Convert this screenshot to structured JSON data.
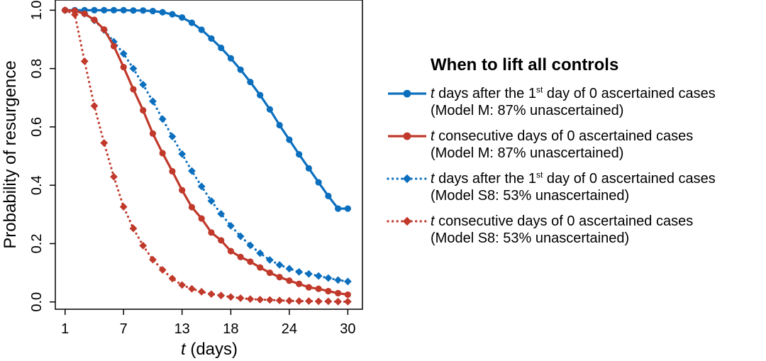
{
  "chart_data": {
    "type": "line",
    "title": "",
    "xlabel": "t (days)",
    "ylabel": "Probability of resurgence",
    "x_ticks": [
      1,
      7,
      13,
      18,
      24,
      30
    ],
    "y_ticks": [
      0.0,
      0.2,
      0.4,
      0.6,
      0.8,
      1.0
    ],
    "y_tick_labels": [
      "0.0",
      "0.2",
      "0.4",
      "0.6",
      "0.8",
      "1.0"
    ],
    "xlim": [
      0,
      31.5
    ],
    "ylim": [
      -0.025,
      1.035
    ],
    "grid": false,
    "legend": {
      "placement": "right",
      "title": "When to lift all controls"
    },
    "x": [
      1,
      2,
      3,
      4,
      5,
      6,
      7,
      8,
      9,
      10,
      11,
      12,
      13,
      14,
      15,
      16,
      17,
      18,
      19,
      20,
      21,
      22,
      23,
      24,
      25,
      26,
      27,
      28,
      29,
      30
    ],
    "series": [
      {
        "key": "blue_solid",
        "color": "#0c6fbe",
        "line": "solid",
        "marker": "circle",
        "label": {
          "pre": "",
          "t": "t",
          "mid": " days after the 1",
          "sup": "st",
          "post": " day of 0 ascertained cases",
          "line2": "(Model M: 87% unascertained)"
        },
        "values": [
          1.0,
          1.0,
          1.0,
          1.0,
          1.0,
          1.0,
          1.0,
          0.999,
          0.999,
          0.997,
          0.993,
          0.986,
          0.975,
          0.957,
          0.933,
          0.903,
          0.871,
          0.835,
          0.796,
          0.754,
          0.709,
          0.66,
          0.606,
          0.556,
          0.506,
          0.458,
          0.41,
          0.363,
          0.32,
          0.32
        ]
      },
      {
        "key": "red_solid",
        "color": "#c0392b",
        "line": "solid",
        "marker": "circle",
        "label": {
          "pre": "",
          "t": "t",
          "mid": " consecutive days of 0 ascertained cases",
          "sup": "",
          "post": "",
          "line2": "(Model M: 87% unascertained)"
        },
        "values": [
          1.0,
          0.998,
          0.988,
          0.967,
          0.934,
          0.877,
          0.805,
          0.729,
          0.657,
          0.577,
          0.51,
          0.448,
          0.383,
          0.325,
          0.286,
          0.238,
          0.211,
          0.174,
          0.154,
          0.138,
          0.118,
          0.1,
          0.085,
          0.073,
          0.062,
          0.05,
          0.045,
          0.037,
          0.03,
          0.025
        ]
      },
      {
        "key": "blue_dotted",
        "color": "#0c6fbe",
        "line": "dotted",
        "marker": "diamond",
        "label": {
          "pre": "",
          "t": "t",
          "mid": " days after the 1",
          "sup": "st",
          "post": " day of 0 ascertained cases",
          "line2": "(Model S8: 53% unascertained)"
        },
        "values": [
          1.0,
          0.998,
          0.988,
          0.965,
          0.932,
          0.892,
          0.851,
          0.8,
          0.745,
          0.688,
          0.627,
          0.567,
          0.507,
          0.449,
          0.396,
          0.346,
          0.302,
          0.261,
          0.225,
          0.194,
          0.167,
          0.144,
          0.127,
          0.114,
          0.103,
          0.096,
          0.089,
          0.082,
          0.075,
          0.07
        ]
      },
      {
        "key": "red_dotted",
        "color": "#c0392b",
        "line": "dotted",
        "marker": "diamond",
        "label": {
          "pre": "",
          "t": "t",
          "mid": " consecutive days of 0 ascertained cases",
          "sup": "",
          "post": "",
          "line2": "(Model S8: 53% unascertained)"
        },
        "values": [
          1.0,
          0.985,
          0.825,
          0.672,
          0.545,
          0.429,
          0.326,
          0.252,
          0.193,
          0.145,
          0.11,
          0.08,
          0.058,
          0.045,
          0.035,
          0.027,
          0.022,
          0.017,
          0.013,
          0.01,
          0.008,
          0.007,
          0.005,
          0.004,
          0.003,
          0.003,
          0.002,
          0.002,
          0.001,
          0.001
        ]
      }
    ]
  }
}
